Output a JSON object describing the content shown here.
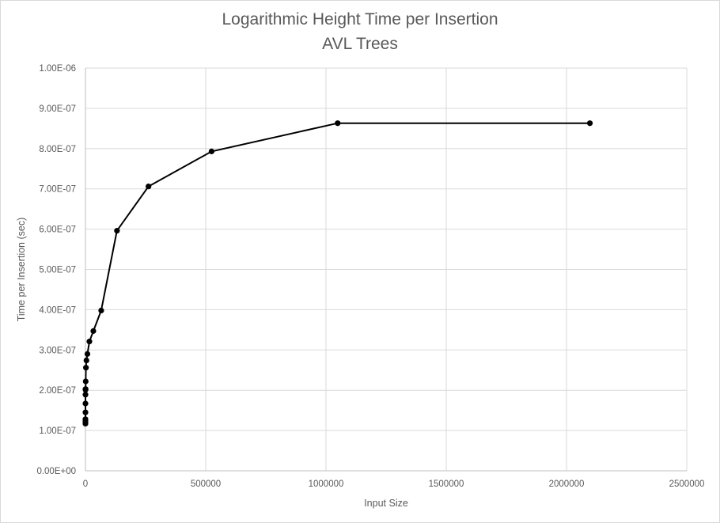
{
  "chart_data": {
    "type": "scatter",
    "title": [
      "Logarithmic Height Time per Insertion",
      "AVL Trees"
    ],
    "xlabel": "Input Size",
    "ylabel": "Time per Insertion (sec)",
    "xlim": [
      0,
      2500000
    ],
    "ylim": [
      0,
      1e-06
    ],
    "x_ticks": [
      "0",
      "500000",
      "1000000",
      "1500000",
      "2000000",
      "2500000"
    ],
    "y_ticks": [
      "0.00E+00",
      "1.00E-07",
      "2.00E-07",
      "3.00E-07",
      "4.00E-07",
      "5.00E-07",
      "6.00E-07",
      "7.00E-07",
      "8.00E-07",
      "9.00E-07",
      "1.00E-06"
    ],
    "grid": true,
    "line_color": "#000000",
    "marker": "circle",
    "series": [
      {
        "x": [
          2,
          4,
          8,
          16,
          32,
          64,
          128,
          256,
          512,
          1024,
          2048,
          4096,
          8192,
          16384,
          32768,
          65536,
          131072,
          262144,
          524288,
          1048576,
          2097152
        ],
        "y": [
          1.17e-07,
          1.2e-07,
          1.24e-07,
          1.28e-07,
          1.45e-07,
          1.67e-07,
          1.89e-07,
          2.01e-07,
          2.03e-07,
          2.22e-07,
          2.56e-07,
          2.74e-07,
          2.9e-07,
          3.21e-07,
          3.47e-07,
          3.98e-07,
          5.96e-07,
          7.06e-07,
          7.93e-07,
          8.63e-07,
          8.63e-07
        ]
      }
    ]
  }
}
